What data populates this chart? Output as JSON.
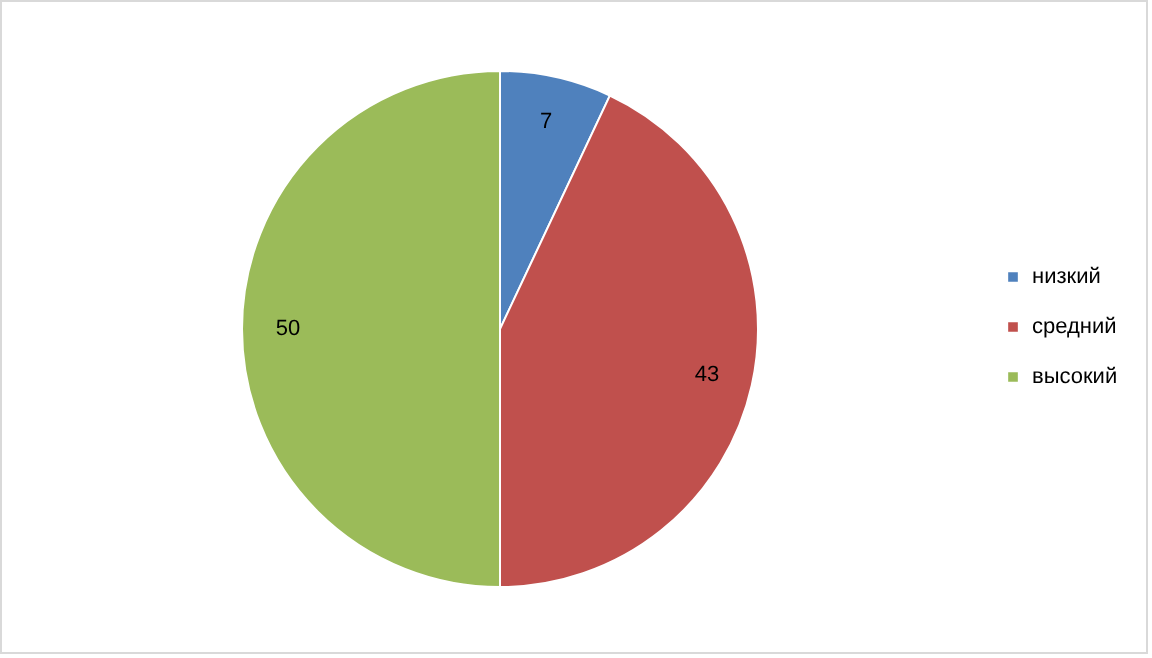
{
  "chart_data": {
    "type": "pie",
    "categories": [
      "низкий",
      "средний",
      "высокий"
    ],
    "values": [
      7,
      43,
      50
    ],
    "colors": [
      "#4f81bd",
      "#c0504d",
      "#9bbb59"
    ],
    "data_labels": true,
    "legend": "right"
  }
}
